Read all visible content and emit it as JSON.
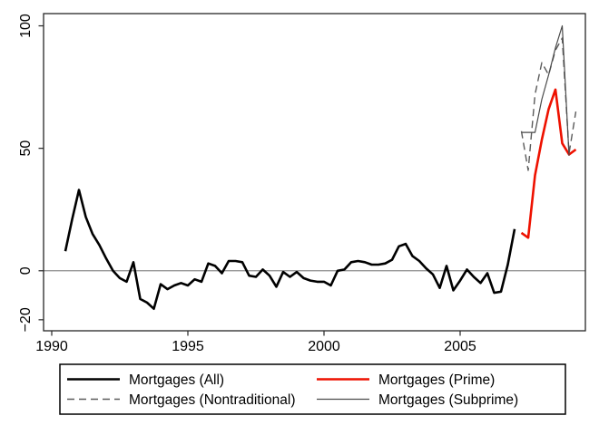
{
  "figure": {
    "background": "#ffffff",
    "border_color": "#262626",
    "zero_line_color": "#8c8c8c",
    "tick_label_color": "#000000"
  },
  "chart_data": {
    "type": "line",
    "title": "",
    "xlabel": "",
    "ylabel": "",
    "xlim": [
      1989.7,
      2009.6
    ],
    "ylim": [
      -24.5,
      105
    ],
    "x_ticks": [
      1990,
      1995,
      2000,
      2005
    ],
    "y_ticks": [
      -20,
      0,
      50,
      100
    ],
    "grid": false,
    "zero_line": true,
    "legend_position": "bottom",
    "series": [
      {
        "name": "Mortgages (All)",
        "color": "#000000",
        "dash": "solid",
        "width": 2.6,
        "points": [
          [
            1990.5,
            8
          ],
          [
            1990.75,
            21
          ],
          [
            1991,
            33
          ],
          [
            1991.25,
            22
          ],
          [
            1991.5,
            15
          ],
          [
            1991.75,
            10.5
          ],
          [
            1992,
            5
          ],
          [
            1992.25,
            0
          ],
          [
            1992.5,
            -3
          ],
          [
            1992.75,
            -4.5
          ],
          [
            1993,
            3.5
          ],
          [
            1993.25,
            -11.5
          ],
          [
            1993.5,
            -13
          ],
          [
            1993.75,
            -15.5
          ],
          [
            1994,
            -5.5
          ],
          [
            1994.25,
            -7.5
          ],
          [
            1994.5,
            -6
          ],
          [
            1994.75,
            -5
          ],
          [
            1995,
            -6
          ],
          [
            1995.25,
            -3.5
          ],
          [
            1995.5,
            -4.5
          ],
          [
            1995.75,
            3
          ],
          [
            1996,
            2
          ],
          [
            1996.25,
            -1
          ],
          [
            1996.5,
            4
          ],
          [
            1996.75,
            4
          ],
          [
            1997,
            3.5
          ],
          [
            1997.25,
            -2
          ],
          [
            1997.5,
            -2.5
          ],
          [
            1997.75,
            0.5
          ],
          [
            1998,
            -2
          ],
          [
            1998.25,
            -6.5
          ],
          [
            1998.5,
            -0.5
          ],
          [
            1998.75,
            -2.5
          ],
          [
            1999,
            -0.5
          ],
          [
            1999.25,
            -3
          ],
          [
            1999.5,
            -4
          ],
          [
            1999.75,
            -4.5
          ],
          [
            2000,
            -4.5
          ],
          [
            2000.25,
            -6
          ],
          [
            2000.5,
            0
          ],
          [
            2000.75,
            0.5
          ],
          [
            2001,
            3.5
          ],
          [
            2001.25,
            4
          ],
          [
            2001.5,
            3.5
          ],
          [
            2001.75,
            2.5
          ],
          [
            2002,
            2.5
          ],
          [
            2002.25,
            3
          ],
          [
            2002.5,
            4.5
          ],
          [
            2002.75,
            10
          ],
          [
            2003,
            11
          ],
          [
            2003.25,
            6
          ],
          [
            2003.5,
            4
          ],
          [
            2003.75,
            1
          ],
          [
            2004,
            -1.5
          ],
          [
            2004.25,
            -7
          ],
          [
            2004.5,
            2
          ],
          [
            2004.75,
            -8
          ],
          [
            2005,
            -4
          ],
          [
            2005.25,
            0.5
          ],
          [
            2005.5,
            -2.5
          ],
          [
            2005.75,
            -5
          ],
          [
            2006,
            -1
          ],
          [
            2006.25,
            -9
          ],
          [
            2006.5,
            -8.5
          ],
          [
            2006.75,
            2.5
          ],
          [
            2007,
            17
          ]
        ]
      },
      {
        "name": "Mortgages (Prime)",
        "color": "#ee1100",
        "dash": "solid",
        "width": 2.6,
        "points": [
          [
            2007.25,
            15.5
          ],
          [
            2007.5,
            13.5
          ],
          [
            2007.75,
            39
          ],
          [
            2008,
            53.5
          ],
          [
            2008.25,
            66
          ],
          [
            2008.5,
            74
          ],
          [
            2008.75,
            52
          ],
          [
            2009,
            47.5
          ],
          [
            2009.25,
            49.5
          ]
        ]
      },
      {
        "name": "Mortgages (Nontraditional)",
        "color": "#5a5a5a",
        "dash": "dashed",
        "width": 1.4,
        "points": [
          [
            2007.25,
            57
          ],
          [
            2007.5,
            41
          ],
          [
            2007.75,
            72
          ],
          [
            2008,
            85
          ],
          [
            2008.25,
            80
          ],
          [
            2008.5,
            90
          ],
          [
            2008.75,
            95
          ],
          [
            2009,
            48
          ],
          [
            2009.25,
            65
          ]
        ]
      },
      {
        "name": "Mortgages (Subprime)",
        "color": "#4a4a4a",
        "dash": "solid",
        "width": 1.2,
        "points": [
          [
            2007.25,
            56.5
          ],
          [
            2007.5,
            56.5
          ],
          [
            2007.75,
            56.5
          ],
          [
            2008,
            70
          ],
          [
            2008.25,
            80
          ],
          [
            2008.5,
            91
          ],
          [
            2008.75,
            100
          ],
          [
            2009,
            47
          ]
        ]
      }
    ]
  },
  "legend": {
    "items": [
      {
        "label": "Mortgages (All)",
        "series": 0,
        "row": 0,
        "col": 0
      },
      {
        "label": "Mortgages (Nontraditional)",
        "series": 2,
        "row": 1,
        "col": 0
      },
      {
        "label": "Mortgages (Prime)",
        "series": 1,
        "row": 0,
        "col": 1
      },
      {
        "label": "Mortgages (Subprime)",
        "series": 3,
        "row": 1,
        "col": 1
      }
    ]
  }
}
